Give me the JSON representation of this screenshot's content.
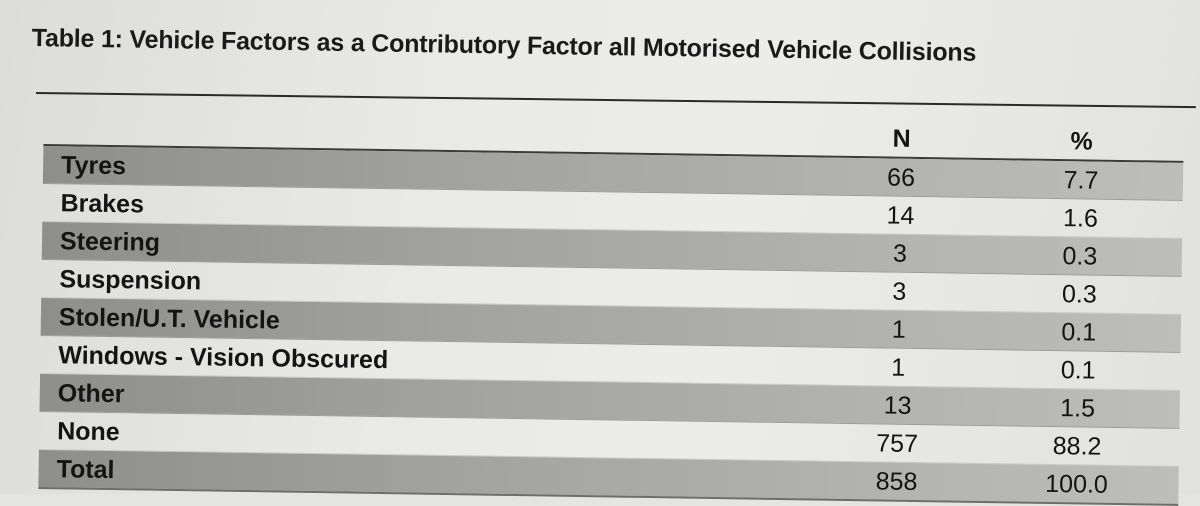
{
  "title": "Table 1: Vehicle Factors as a Contributory Factor all Motorised Vehicle Collisions",
  "columns": {
    "n": "N",
    "pct": "%"
  },
  "rows": [
    {
      "label": "Tyres",
      "n": "66",
      "pct": "7.7",
      "shaded": true
    },
    {
      "label": "Brakes",
      "n": "14",
      "pct": "1.6",
      "shaded": false
    },
    {
      "label": "Steering",
      "n": "3",
      "pct": "0.3",
      "shaded": true
    },
    {
      "label": "Suspension",
      "n": "3",
      "pct": "0.3",
      "shaded": false
    },
    {
      "label": "Stolen/U.T. Vehicle",
      "n": "1",
      "pct": "0.1",
      "shaded": true
    },
    {
      "label": "Windows - Vision Obscured",
      "n": "1",
      "pct": "0.1",
      "shaded": false
    },
    {
      "label": "Other",
      "n": "13",
      "pct": "1.5",
      "shaded": true
    },
    {
      "label": "None",
      "n": "757",
      "pct": "88.2",
      "shaded": false
    },
    {
      "label": "Total",
      "n": "858",
      "pct": "100.0",
      "shaded": true
    }
  ],
  "colors": {
    "shaded_row": "#a4a4a1",
    "paper": "#e9e9e6",
    "text": "#141414"
  }
}
